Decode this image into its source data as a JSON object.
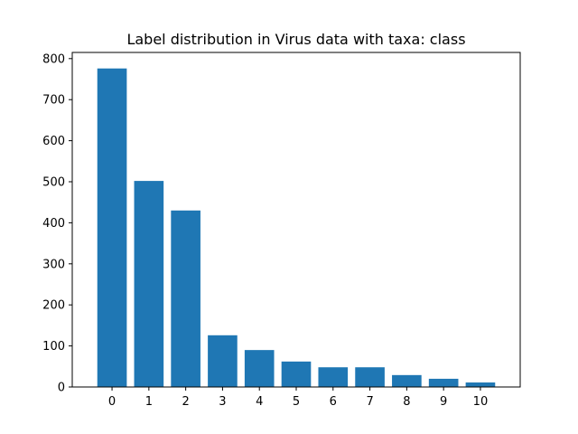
{
  "chart_data": {
    "type": "bar",
    "title": "Label distribution in Virus data with taxa: class",
    "xlabel": "",
    "ylabel": "",
    "categories": [
      "0",
      "1",
      "2",
      "3",
      "4",
      "5",
      "6",
      "7",
      "8",
      "9",
      "10"
    ],
    "values": [
      776,
      502,
      430,
      126,
      90,
      62,
      48,
      48,
      29,
      20,
      11
    ],
    "ylim": [
      0,
      815
    ],
    "yticks": [
      0,
      100,
      200,
      300,
      400,
      500,
      600,
      700,
      800
    ],
    "bar_color": "#1f77b4",
    "grid": false,
    "legend": "none"
  }
}
